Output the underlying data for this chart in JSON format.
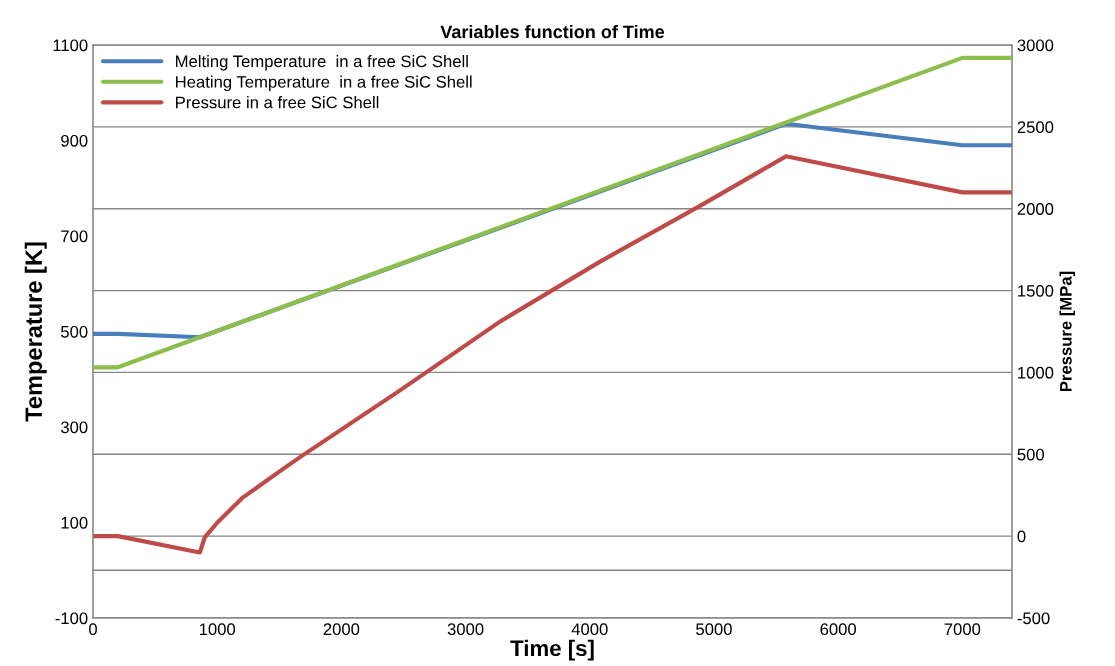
{
  "chart_data": {
    "type": "line",
    "title": "Variables function of Time",
    "xlabel": "Time [s]",
    "ylabel": "Temperature [K]",
    "y2label": "Pressure [MPa]",
    "xlim": [
      0,
      7400
    ],
    "xticks": [
      0,
      1000,
      2000,
      3000,
      4000,
      5000,
      6000,
      7000
    ],
    "ylim": [
      -100,
      1100
    ],
    "yticks": [
      -100,
      100,
      300,
      500,
      700,
      900,
      1100
    ],
    "y2lim": [
      -500,
      3000
    ],
    "y2ticks": [
      -500,
      0,
      500,
      1000,
      1500,
      2000,
      2500,
      3000
    ],
    "grid": "y2",
    "legend": "top left",
    "marker": "none",
    "line_style": "solid",
    "ref_lines": [
      {
        "axis": "y",
        "value": 0,
        "color": "#868686"
      }
    ],
    "series": [
      {
        "name": "Melting Temperature  in a free SiC Shell",
        "color": "#4a7ebb",
        "x": [
          0,
          200,
          860,
          5580,
          7000,
          7400
        ],
        "values": [
          495,
          495,
          488,
          935,
          890,
          890
        ]
      },
      {
        "name": "Heating Temperature  in a free SiC Shell",
        "color": "#8cbe4c",
        "x": [
          0,
          200,
          7000,
          7400
        ],
        "values": [
          425,
          425,
          1073,
          1073
        ]
      },
      {
        "name": "Pressure in a free SiC Shell",
        "color": "#be4b48",
        "axis": "y2",
        "x": [
          0,
          200,
          860,
          900,
          1000,
          1200,
          1500,
          1670,
          2475,
          3280,
          4090,
          4895,
          5580,
          7000,
          7400
        ],
        "values": [
          0,
          0,
          -100,
          -8,
          82,
          232,
          394,
          484,
          892,
          1312,
          1680,
          2020,
          2320,
          2100,
          2100
        ]
      }
    ]
  }
}
